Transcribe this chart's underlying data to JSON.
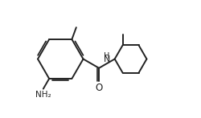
{
  "background_color": "#ffffff",
  "line_color": "#222222",
  "line_width": 1.4,
  "text_color": "#222222",
  "font_size": 7.5,
  "xlim": [
    -0.5,
    10.5
  ],
  "ylim": [
    0.5,
    6.5
  ]
}
